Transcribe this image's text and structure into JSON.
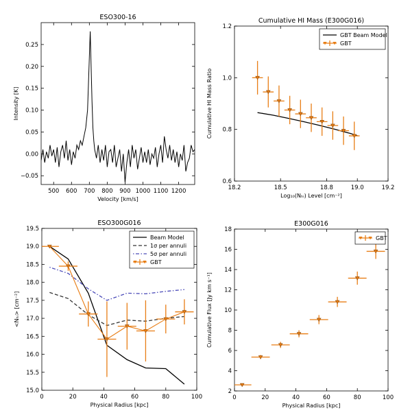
{
  "chart_data": [
    {
      "type": "line",
      "title": "ESO300-16",
      "xlabel": "Velocity [km/s]",
      "ylabel": "Intensity [K]",
      "xlim": [
        430,
        1290
      ],
      "ylim": [
        -0.07,
        0.3
      ],
      "xticks": [
        500,
        600,
        700,
        800,
        900,
        1000,
        1100,
        1200
      ],
      "xtick_labels": [
        "500",
        "600",
        "700",
        "800",
        "900",
        "1000",
        "1100",
        "1200"
      ],
      "yticks": [
        -0.05,
        0,
        0.05,
        0.1,
        0.15,
        0.2,
        0.25
      ],
      "ytick_labels": [
        "−0.05",
        "0.00",
        "0.05",
        "0.10",
        "0.15",
        "0.20",
        "0.25"
      ],
      "grid": false,
      "series": [
        {
          "color": "#000000",
          "x": [
            430,
            440,
            450,
            460,
            470,
            480,
            490,
            500,
            510,
            520,
            530,
            540,
            550,
            560,
            570,
            580,
            590,
            600,
            610,
            620,
            630,
            640,
            650,
            660,
            670,
            680,
            690,
            695,
            700,
            705,
            710,
            715,
            720,
            725,
            730,
            740,
            750,
            760,
            770,
            780,
            790,
            800,
            810,
            820,
            830,
            840,
            850,
            860,
            870,
            880,
            890,
            900,
            910,
            920,
            930,
            940,
            950,
            960,
            970,
            980,
            990,
            1000,
            1010,
            1020,
            1030,
            1040,
            1050,
            1060,
            1070,
            1080,
            1090,
            1100,
            1110,
            1120,
            1130,
            1140,
            1150,
            1160,
            1170,
            1180,
            1190,
            1200,
            1210,
            1220,
            1230,
            1240,
            1250,
            1260,
            1270,
            1280,
            1290
          ],
          "y": [
            -0.015,
            0.01,
            -0.02,
            0.005,
            -0.01,
            0.02,
            -0.005,
            0.01,
            -0.02,
            0.015,
            -0.03,
            0.005,
            0.02,
            -0.01,
            0.03,
            -0.015,
            0.01,
            -0.025,
            0.005,
            -0.01,
            0.02,
            0.01,
            0.03,
            0.02,
            0.04,
            0.06,
            0.1,
            0.16,
            0.22,
            0.28,
            0.2,
            0.12,
            0.06,
            0.03,
            0.01,
            -0.01,
            0.02,
            -0.02,
            0.01,
            -0.015,
            0.02,
            -0.03,
            0.005,
            0.01,
            -0.02,
            0.02,
            -0.03,
            -0.01,
            0.01,
            -0.04,
            0.0,
            -0.065,
            -0.02,
            0.01,
            -0.03,
            0.02,
            -0.01,
            0.01,
            -0.035,
            -0.01,
            0.015,
            -0.02,
            0.005,
            -0.02,
            0.01,
            -0.025,
            0.0,
            -0.01,
            0.015,
            -0.03,
            0.0,
            0.02,
            -0.02,
            0.04,
            0.01,
            -0.01,
            0.02,
            -0.015,
            0.01,
            -0.02,
            0.005,
            -0.03,
            0.0,
            -0.015,
            0.02,
            -0.04,
            -0.02,
            -0.01,
            0.02,
            0.005,
            0.01
          ]
        }
      ]
    },
    {
      "type": "scatter",
      "title": "Cumulative HI Mass (E300G016)",
      "xlabel": "Log₁₀(Nₕᵢ) Level [cm⁻²]",
      "ylabel": "Cumulative HI Mass Ratio",
      "xlim": [
        18.2,
        19.2
      ],
      "ylim": [
        0.6,
        1.2
      ],
      "xticks": [
        18.2,
        18.5,
        18.8,
        19.0,
        19.2
      ],
      "xtick_labels": [
        "18.2",
        "18.5",
        "18.8",
        "19.0",
        "19.2"
      ],
      "yticks": [
        0.6,
        0.8,
        1.0,
        1.2
      ],
      "ytick_labels": [
        "0.6",
        "0.8",
        "1.0",
        "1.2"
      ],
      "legend_position": "top-right",
      "grid": false,
      "series": [
        {
          "name": "GBT Beam Model",
          "kind": "line",
          "color": "#000000",
          "x": [
            18.35,
            18.45,
            18.55,
            18.65,
            18.75,
            18.85,
            18.95,
            19.0
          ],
          "y": [
            0.865,
            0.855,
            0.843,
            0.83,
            0.816,
            0.801,
            0.785,
            0.776
          ]
        },
        {
          "name": "GBT",
          "kind": "errorbar",
          "color": "#e87d14",
          "x": [
            18.35,
            18.42,
            18.49,
            18.56,
            18.63,
            18.7,
            18.77,
            18.84,
            18.91,
            18.98
          ],
          "y": [
            1.0,
            0.945,
            0.91,
            0.875,
            0.86,
            0.845,
            0.83,
            0.815,
            0.795,
            0.775
          ],
          "xerr": 0.035,
          "yerr": [
            0.065,
            0.06,
            0.06,
            0.055,
            0.055,
            0.055,
            0.055,
            0.055,
            0.055,
            0.055
          ]
        }
      ]
    },
    {
      "type": "line",
      "title": "ESO300G016",
      "xlabel": "Physical Radius [kpc]",
      "ylabel": "<Nₕᵢ> [cm⁻²]",
      "xlim": [
        0,
        100
      ],
      "ylim": [
        15.0,
        19.5
      ],
      "xticks": [
        0,
        20,
        40,
        60,
        80,
        100
      ],
      "xtick_labels": [
        "0",
        "20",
        "40",
        "60",
        "80",
        "100"
      ],
      "yticks": [
        15.0,
        15.5,
        16.0,
        16.5,
        17.0,
        17.5,
        18.0,
        18.5,
        19.0,
        19.5
      ],
      "ytick_labels": [
        "15.0",
        "15.5",
        "16.0",
        "16.5",
        "17.0",
        "17.5",
        "18.0",
        "18.5",
        "19.0",
        "19.5"
      ],
      "legend_position": "top-right",
      "grid": false,
      "series": [
        {
          "name": "Beam Model",
          "kind": "line",
          "style": "solid",
          "color": "#000000",
          "x": [
            5,
            17,
            30,
            42,
            55,
            67,
            80,
            92
          ],
          "y": [
            19.0,
            18.65,
            17.7,
            16.25,
            15.85,
            15.62,
            15.6,
            15.17
          ]
        },
        {
          "name": "1σ per annuli",
          "kind": "line",
          "style": "dashed",
          "color": "#333333",
          "x": [
            5,
            17,
            30,
            42,
            55,
            67,
            80,
            92
          ],
          "y": [
            17.72,
            17.55,
            17.1,
            16.8,
            16.95,
            16.92,
            17.0,
            17.05
          ]
        },
        {
          "name": "5σ per annuli",
          "kind": "line",
          "style": "dashdot",
          "color": "#4a4ab8",
          "x": [
            5,
            17,
            30,
            42,
            55,
            67,
            80,
            92
          ],
          "y": [
            18.42,
            18.25,
            17.82,
            17.5,
            17.7,
            17.68,
            17.75,
            17.8
          ]
        },
        {
          "name": "GBT",
          "kind": "errorbar",
          "color": "#e87d14",
          "x": [
            5,
            17,
            30,
            42,
            55,
            67,
            80,
            92
          ],
          "y": [
            19.0,
            18.45,
            17.12,
            16.42,
            16.78,
            16.65,
            16.98,
            17.18
          ],
          "xerr": 6,
          "yerr": [
            0.02,
            0.13,
            0.35,
            1.05,
            0.65,
            0.85,
            0.4,
            0.35
          ]
        }
      ]
    },
    {
      "type": "scatter",
      "title": "E300G016",
      "xlabel": "Physical Radius [kpc]",
      "ylabel": "Cumulative Flux [Jy km s⁻¹]",
      "xlim": [
        0,
        100
      ],
      "ylim": [
        2,
        18
      ],
      "xticks": [
        0,
        20,
        40,
        60,
        80,
        100
      ],
      "xtick_labels": [
        "0",
        "20",
        "40",
        "60",
        "80",
        "100"
      ],
      "yticks": [
        2,
        4,
        6,
        8,
        10,
        12,
        14,
        16,
        18
      ],
      "ytick_labels": [
        "2",
        "4",
        "6",
        "8",
        "10",
        "12",
        "14",
        "16",
        "18"
      ],
      "legend_position": "top-left",
      "grid": false,
      "series": [
        {
          "name": "GBT",
          "kind": "errorbar",
          "color": "#e87d14",
          "x": [
            5,
            17,
            30,
            42,
            55,
            67,
            80,
            92
          ],
          "y": [
            2.6,
            5.35,
            6.55,
            7.65,
            9.05,
            10.8,
            13.15,
            15.8
          ],
          "xerr": 6,
          "yerr": [
            0.1,
            0.2,
            0.3,
            0.35,
            0.45,
            0.5,
            0.65,
            0.75
          ]
        }
      ]
    }
  ]
}
